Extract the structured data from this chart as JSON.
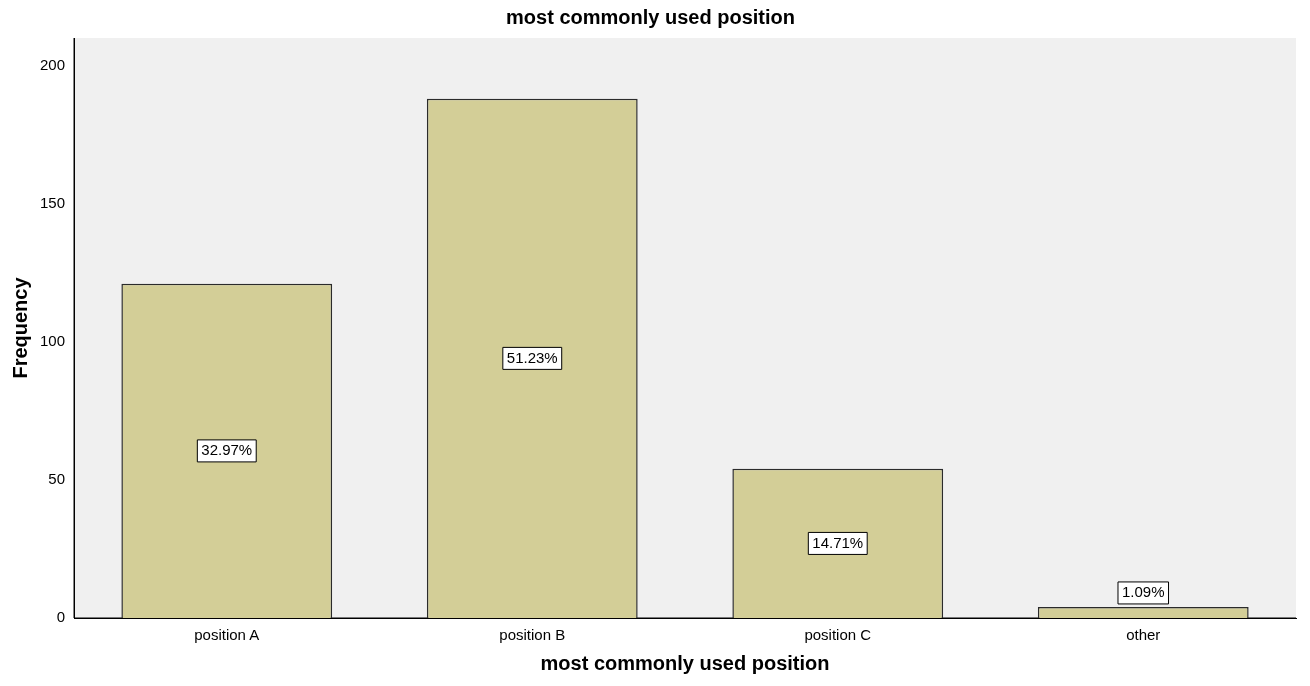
{
  "chart_data": {
    "type": "bar",
    "title": "most commonly used position",
    "xlabel": "most commonly used position",
    "ylabel": "Frequency",
    "categories": [
      "position A",
      "position B",
      "position C",
      "other"
    ],
    "values": [
      121,
      188,
      54,
      4
    ],
    "color": "#d3ce97",
    "annotations": [
      "32.97%",
      "51.23%",
      "14.71%",
      "1.09%"
    ],
    "ylim": [
      0,
      210
    ],
    "yticks": [
      0,
      50,
      100,
      150,
      200
    ],
    "grid": false,
    "legend": false
  }
}
